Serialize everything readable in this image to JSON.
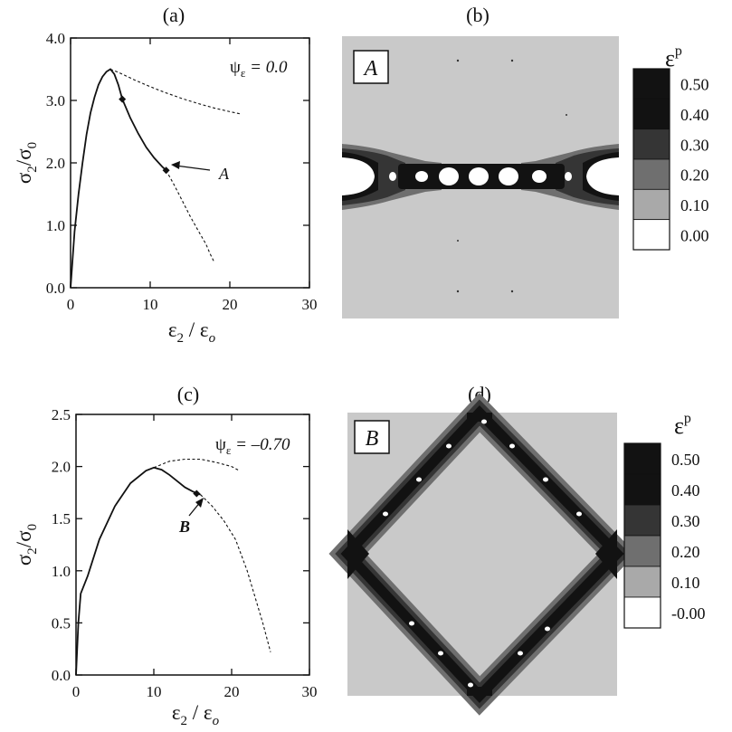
{
  "colors": {
    "field_gray": "#c9c9c9",
    "band_black": "#121212",
    "band_dark": "#353535",
    "band_mid": "#6f6f6f",
    "band_light": "#a9a9a9",
    "void_white": "#ffffff"
  },
  "panels": {
    "a": {
      "label": "(a)"
    },
    "b": {
      "label": "(b)",
      "box_letter": "A"
    },
    "c": {
      "label": "(c)"
    },
    "d": {
      "label": "(d)",
      "box_letter": "B"
    }
  },
  "colorbar_top": {
    "title": "ε",
    "sup": "p",
    "labels": [
      "0.50",
      "0.40",
      "0.30",
      "0.20",
      "0.10",
      "0.00"
    ]
  },
  "colorbar_bottom": {
    "title": "ε",
    "sup": "p",
    "labels": [
      "0.50",
      "0.40",
      "0.30",
      "0.20",
      "0.10",
      "-0.00"
    ]
  },
  "chart_data": [
    {
      "type": "line",
      "title": "(a)",
      "xlabel": "ε₂ / ε₀",
      "ylabel": "σ₂/σ₀",
      "xlim": [
        0,
        30
      ],
      "ylim": [
        0.0,
        4.0
      ],
      "x_ticks": [
        "0",
        "10",
        "20",
        "30"
      ],
      "y_ticks": [
        "0.0",
        "1.0",
        "2.0",
        "3.0",
        "4.0"
      ],
      "annotation": {
        "psi": "ψ",
        "sub": "ε",
        "value": "= 0.0"
      },
      "point_label": "A",
      "series": [
        {
          "style": "solid",
          "points": [
            [
              0,
              0
            ],
            [
              0.5,
              0.9
            ],
            [
              1,
              1.5
            ],
            [
              1.5,
              2.0
            ],
            [
              2,
              2.45
            ],
            [
              2.5,
              2.8
            ],
            [
              3,
              3.05
            ],
            [
              3.5,
              3.25
            ],
            [
              4,
              3.38
            ],
            [
              4.5,
              3.46
            ],
            [
              5.0,
              3.5
            ],
            [
              5.5,
              3.42
            ],
            [
              6,
              3.25
            ],
            [
              6.5,
              3.02
            ],
            [
              7.5,
              2.72
            ],
            [
              8.5,
              2.47
            ],
            [
              9.5,
              2.25
            ],
            [
              10.5,
              2.08
            ],
            [
              11.5,
              1.94
            ],
            [
              12,
              1.88
            ]
          ]
        },
        {
          "style": "dashed",
          "points": [
            [
              5.0,
              3.5
            ],
            [
              6,
              3.45
            ],
            [
              8,
              3.33
            ],
            [
              10,
              3.22
            ],
            [
              12,
              3.12
            ],
            [
              14,
              3.03
            ],
            [
              16,
              2.95
            ],
            [
              18,
              2.88
            ],
            [
              20,
              2.82
            ],
            [
              21.5,
              2.78
            ]
          ]
        },
        {
          "style": "dashed",
          "points": [
            [
              12,
              1.88
            ],
            [
              13,
              1.65
            ],
            [
              14,
              1.4
            ],
            [
              15,
              1.15
            ],
            [
              16,
              0.92
            ],
            [
              17,
              0.7
            ],
            [
              17.5,
              0.55
            ],
            [
              18,
              0.42
            ]
          ]
        }
      ],
      "markers": [
        [
          6.5,
          3.02
        ],
        [
          12,
          1.88
        ]
      ]
    },
    {
      "type": "line",
      "title": "(c)",
      "xlabel": "ε₂ / ε₀",
      "ylabel": "σ₂/σ₀",
      "xlim": [
        0,
        30
      ],
      "ylim": [
        0.0,
        2.5
      ],
      "x_ticks": [
        "0",
        "10",
        "20",
        "30"
      ],
      "y_ticks": [
        "0.0",
        "0.5",
        "1.0",
        "1.5",
        "2.0",
        "2.5"
      ],
      "annotation": {
        "psi": "ψ",
        "sub": "ε",
        "value": "= –0.70"
      },
      "point_label": "B",
      "series": [
        {
          "style": "solid",
          "points": [
            [
              0,
              0
            ],
            [
              0.3,
              0.5
            ],
            [
              0.6,
              0.78
            ],
            [
              1.5,
              0.95
            ],
            [
              3,
              1.3
            ],
            [
              5,
              1.62
            ],
            [
              7,
              1.84
            ],
            [
              9,
              1.96
            ],
            [
              10,
              1.99
            ],
            [
              11,
              1.97
            ],
            [
              12,
              1.92
            ],
            [
              13,
              1.86
            ],
            [
              14,
              1.8
            ],
            [
              15,
              1.76
            ],
            [
              16,
              1.73
            ]
          ]
        },
        {
          "style": "dashed",
          "points": [
            [
              10,
              1.99
            ],
            [
              12,
              2.05
            ],
            [
              14,
              2.07
            ],
            [
              16,
              2.07
            ],
            [
              18,
              2.04
            ],
            [
              20,
              2.0
            ],
            [
              21,
              1.96
            ]
          ]
        },
        {
          "style": "dashed",
          "points": [
            [
              16,
              1.73
            ],
            [
              17.5,
              1.62
            ],
            [
              19,
              1.48
            ],
            [
              20.5,
              1.3
            ],
            [
              22,
              1.0
            ],
            [
              23,
              0.75
            ],
            [
              24,
              0.5
            ],
            [
              25,
              0.22
            ]
          ]
        }
      ],
      "markers": [
        [
          15.5,
          1.74
        ]
      ]
    }
  ]
}
